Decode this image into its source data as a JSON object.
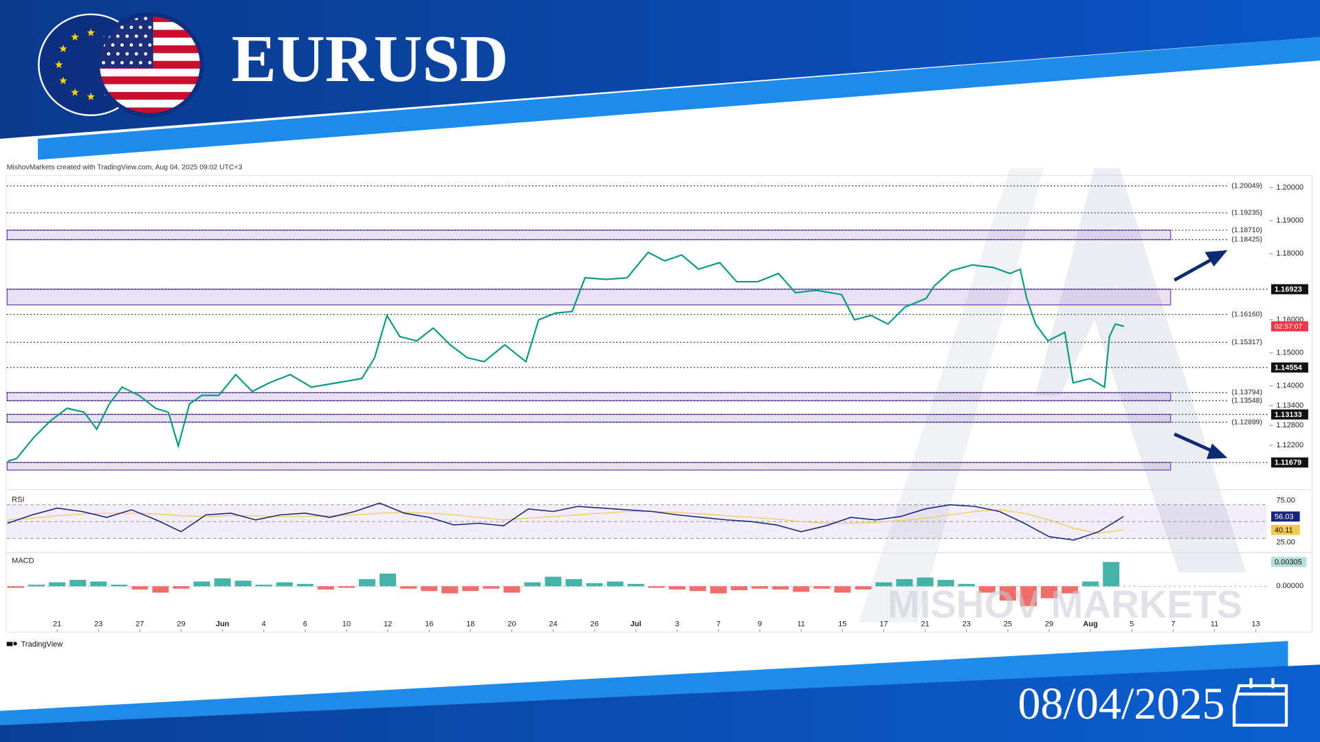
{
  "header": {
    "pair": "EURUSD",
    "date": "08/04/2025"
  },
  "chart_data": {
    "type": "line",
    "attribution": "MishovMarkets created with TradingView.com, Aug 04, 2025 09:02 UTC+3",
    "brand": "TradingView",
    "watermark": "MISHOV MARKETS",
    "countdown": "02:57:07",
    "color": "#089981",
    "x": [
      -1.2,
      -0.98,
      -0.57,
      -0.16,
      0.24,
      0.65,
      0.96,
      1.26,
      1.57,
      1.98,
      2.38,
      2.69,
      2.93,
      3.2,
      3.5,
      3.91,
      4.32,
      4.72,
      5.13,
      5.64,
      6.15,
      6.76,
      7.37,
      7.68,
      7.98,
      8.29,
      8.7,
      9.1,
      9.51,
      9.92,
      10.33,
      10.83,
      11.34,
      11.65,
      12.06,
      12.46,
      12.77,
      13.28,
      13.79,
      14.3,
      14.7,
      15.11,
      15.52,
      16.03,
      16.44,
      16.95,
      17.45,
      17.86,
      18.37,
      18.98,
      19.29,
      19.69,
      20.1,
      20.51,
      21.02,
      21.22,
      21.63,
      22.14,
      22.65,
      23.05,
      23.3,
      23.46,
      23.67,
      23.97,
      24.38,
      24.58,
      24.99,
      25.34,
      25.46,
      25.6,
      25.81
    ],
    "values": [
      1.1172,
      1.118,
      1.1243,
      1.1294,
      1.1332,
      1.132,
      1.1269,
      1.1345,
      1.1396,
      1.1371,
      1.1332,
      1.132,
      1.1218,
      1.1345,
      1.1371,
      1.1371,
      1.1434,
      1.1383,
      1.1409,
      1.1434,
      1.1396,
      1.1409,
      1.1422,
      1.1485,
      1.1613,
      1.1549,
      1.1536,
      1.1575,
      1.1524,
      1.1485,
      1.1473,
      1.1524,
      1.1473,
      1.16,
      1.162,
      1.1625,
      1.1727,
      1.1722,
      1.1727,
      1.1804,
      1.1778,
      1.1796,
      1.1753,
      1.1773,
      1.1715,
      1.1715,
      1.174,
      1.1682,
      1.1689,
      1.1676,
      1.16,
      1.1613,
      1.1587,
      1.1638,
      1.1664,
      1.1702,
      1.1748,
      1.1766,
      1.1758,
      1.174,
      1.1753,
      1.1664,
      1.1587,
      1.1536,
      1.1562,
      1.1409,
      1.1422,
      1.1396,
      1.1549,
      1.1587,
      1.158
    ],
    "xlim": [
      -1.22,
      29.27
    ],
    "xticks": [
      {
        "value": 0,
        "label": "21"
      },
      {
        "value": 1,
        "label": "23"
      },
      {
        "value": 2,
        "label": "27"
      },
      {
        "value": 3,
        "label": "29"
      },
      {
        "value": 4,
        "label": "Jun"
      },
      {
        "value": 5,
        "label": "4"
      },
      {
        "value": 6,
        "label": "6"
      },
      {
        "value": 7,
        "label": "10"
      },
      {
        "value": 8,
        "label": "12"
      },
      {
        "value": 9,
        "label": "16"
      },
      {
        "value": 10,
        "label": "18"
      },
      {
        "value": 11,
        "label": "20"
      },
      {
        "value": 12,
        "label": "24"
      },
      {
        "value": 13,
        "label": "26"
      },
      {
        "value": 14,
        "label": "Jul"
      },
      {
        "value": 15,
        "label": "3"
      },
      {
        "value": 16,
        "label": "7"
      },
      {
        "value": 17,
        "label": "9"
      },
      {
        "value": 18,
        "label": "11"
      },
      {
        "value": 19,
        "label": "15"
      },
      {
        "value": 20,
        "label": "17"
      },
      {
        "value": 21,
        "label": "21"
      },
      {
        "value": 22,
        "label": "23"
      },
      {
        "value": 23,
        "label": "25"
      },
      {
        "value": 24,
        "label": "29"
      },
      {
        "value": 25,
        "label": "Aug"
      },
      {
        "value": 26,
        "label": "5"
      },
      {
        "value": 27,
        "label": "7"
      },
      {
        "value": 28,
        "label": "11"
      },
      {
        "value": 29,
        "label": "13"
      }
    ],
    "ylim": [
      1.1096,
      1.2033
    ],
    "yticks": [
      {
        "value": 1.2,
        "label": "1.20000"
      },
      {
        "value": 1.19,
        "label": "1.19000"
      },
      {
        "value": 1.18,
        "label": "1.18000"
      },
      {
        "value": 1.16,
        "label": "1.16000"
      },
      {
        "value": 1.15,
        "label": "1.15000"
      },
      {
        "value": 1.14,
        "label": "1.14000"
      },
      {
        "value": 1.134,
        "label": "1.13400"
      },
      {
        "value": 1.128,
        "label": "1.12800"
      },
      {
        "value": 1.122,
        "label": "1.12200"
      }
    ],
    "levels": [
      {
        "value": 1.20049,
        "label": "(1.20049)"
      },
      {
        "value": 1.19235,
        "label": "(1.19235)"
      },
      {
        "value": 1.1871,
        "label": "(1.18710)"
      },
      {
        "value": 1.18425,
        "label": "(1.18425)"
      },
      1.16923,
      {
        "value": 1.1616,
        "label": "(1.16160)"
      },
      {
        "value": 1.15317,
        "label": "(1.15317)"
      },
      1.14554,
      {
        "value": 1.13794,
        "label": "(1.13794)"
      },
      {
        "value": 1.13548,
        "label": "(1.13548)"
      },
      1.13133,
      {
        "value": 1.12899,
        "label": "(1.12899)"
      },
      1.11679
    ],
    "zones": [
      [
        1.18425,
        1.1871
      ],
      [
        1.1645,
        1.16923
      ],
      [
        1.13548,
        1.13794
      ],
      [
        1.12899,
        1.13133
      ],
      [
        1.1145,
        1.11679
      ]
    ],
    "zone_color": "#7e57c2",
    "rsi": {
      "label": "RSI",
      "color": "#1a237e",
      "ma_color": "#f2c94c",
      "x": [
        -1.2,
        -0.6,
        0,
        0.6,
        1.2,
        1.8,
        2.4,
        3,
        3.6,
        4.2,
        4.8,
        5.4,
        6,
        6.6,
        7.2,
        7.8,
        8.4,
        9,
        9.6,
        10.2,
        10.8,
        11.4,
        12,
        12.6,
        13.2,
        13.8,
        14.4,
        15,
        15.6,
        16.2,
        16.8,
        17.4,
        18,
        18.6,
        19.2,
        19.8,
        20.4,
        21,
        21.6,
        22.2,
        22.8,
        23.4,
        24,
        24.6,
        25.2,
        25.8
      ],
      "values": [
        48,
        58,
        66,
        62,
        55,
        64,
        52,
        38,
        58,
        60,
        52,
        58,
        60,
        55,
        62,
        72,
        60,
        55,
        46,
        48,
        45,
        65,
        62,
        68,
        66,
        64,
        62,
        58,
        55,
        52,
        50,
        46,
        38,
        45,
        55,
        52,
        56,
        65,
        70,
        68,
        62,
        48,
        32,
        28,
        38,
        56.03
      ],
      "ma_values": [
        52,
        54,
        57,
        59,
        60,
        60,
        59,
        57,
        56,
        57,
        57,
        56,
        56,
        57,
        58,
        60,
        61,
        60,
        58,
        55,
        52,
        54,
        56,
        58,
        60,
        62,
        62,
        61,
        59,
        57,
        55,
        53,
        50,
        48,
        48,
        49,
        51,
        54,
        58,
        62,
        64,
        60,
        52,
        42,
        36,
        40.11
      ],
      "ylim": [
        15,
        82
      ],
      "yticks": [
        {
          "value": 75,
          "label": "75.00"
        },
        {
          "value": 25,
          "label": "25.00"
        }
      ],
      "levels": [
        70,
        50,
        30
      ]
    },
    "macd": {
      "label": "MACD",
      "up_color": "#26a69a",
      "down_color": "#ef5350",
      "x": [
        -1,
        -0.5,
        0,
        0.5,
        1,
        1.5,
        2,
        2.5,
        3,
        3.5,
        4,
        4.5,
        5,
        5.5,
        6,
        6.5,
        7,
        7.5,
        8,
        8.5,
        9,
        9.5,
        10,
        10.5,
        11,
        11.5,
        12,
        12.5,
        13,
        13.5,
        14,
        14.5,
        15,
        15.5,
        16,
        16.5,
        17,
        17.5,
        18,
        18.5,
        19,
        19.5,
        20,
        20.5,
        21,
        21.5,
        22,
        22.5,
        23,
        23.5,
        24,
        24.5,
        25,
        25.5
      ],
      "values": [
        -0.0002,
        0.0002,
        0.0005,
        0.0008,
        0.0006,
        0.0002,
        -0.0004,
        -0.0008,
        -0.0003,
        0.0006,
        0.001,
        0.0007,
        0.0002,
        0.0005,
        0.0003,
        -0.0004,
        -0.0002,
        0.0009,
        0.0016,
        -0.0003,
        -0.0006,
        -0.0009,
        -0.0006,
        -0.0003,
        -0.0008,
        0.0005,
        0.0012,
        0.0009,
        0.0004,
        0.0006,
        0.0003,
        -0.0002,
        -0.0004,
        -0.0006,
        -0.0009,
        -0.0005,
        -0.0003,
        -0.0004,
        -0.0007,
        -0.0003,
        -0.0008,
        -0.0004,
        0.0005,
        0.0009,
        0.0011,
        0.0008,
        0.0003,
        -0.0008,
        -0.0018,
        -0.0025,
        -0.0015,
        -0.0009,
        0.0006,
        0.00305
      ],
      "ylim": [
        -0.0035,
        0.0039
      ],
      "yticks": [
        {
          "value": 0,
          "label": "0.00000"
        }
      ]
    }
  }
}
